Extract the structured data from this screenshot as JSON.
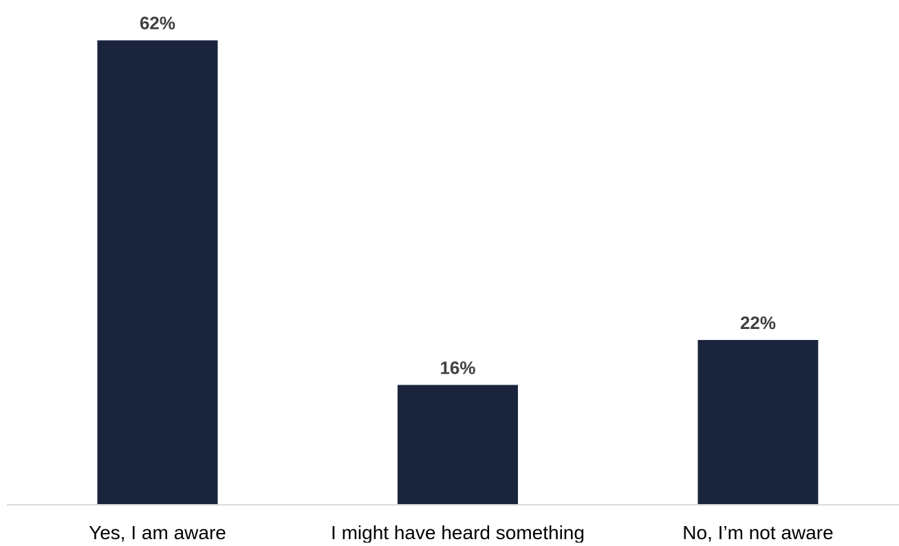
{
  "chart_data": {
    "type": "bar",
    "title": "",
    "xlabel": "",
    "ylabel": "",
    "categories": [
      "Yes, I am aware",
      "I might have heard something",
      "No, I’m not aware"
    ],
    "values": [
      62,
      16,
      22
    ],
    "data_labels": [
      "62%",
      "16%",
      "22%"
    ],
    "ylim": [
      0,
      65
    ],
    "grid": false,
    "legend": "none",
    "colors": {
      "bar": "#1a253d",
      "data_label": "#404040",
      "category_label": "#000000",
      "axis_line": "#d9d9d9"
    }
  }
}
